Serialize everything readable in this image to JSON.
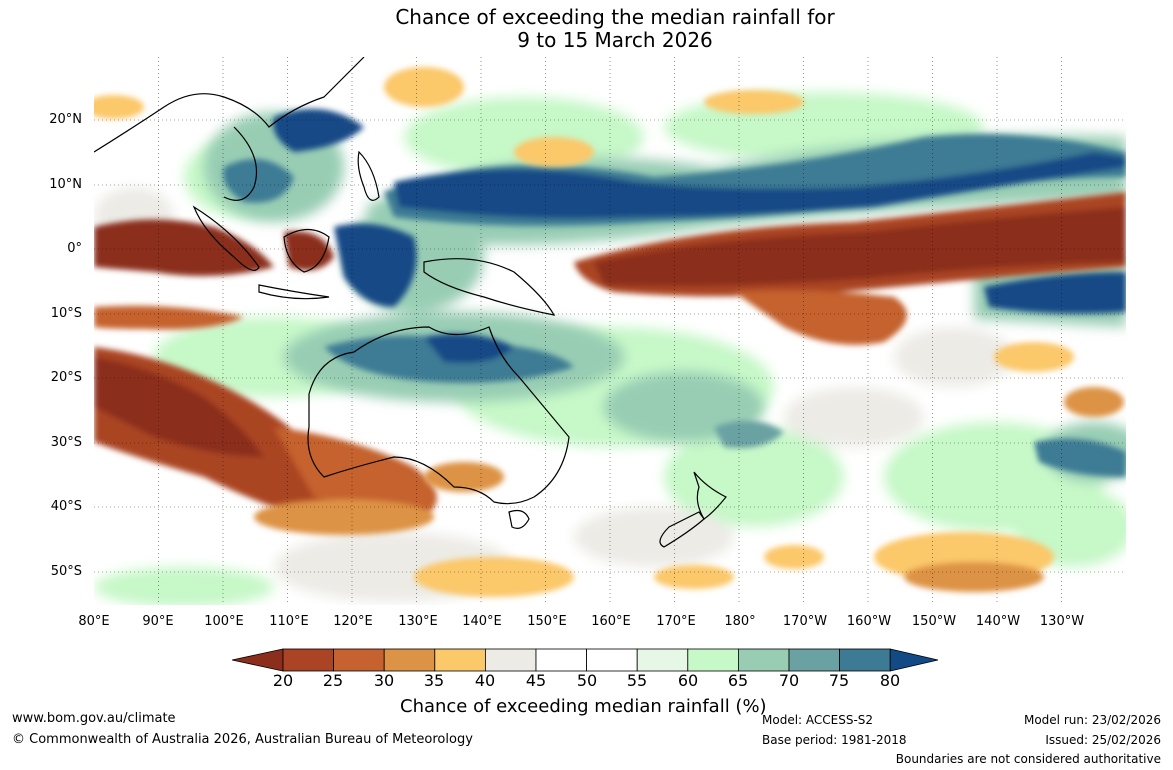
{
  "title": {
    "line1": "Chance of exceeding the median rainfall for",
    "line2": "9 to 15 March 2026"
  },
  "map": {
    "lat_labels": [
      "20°N",
      "10°N",
      "0°",
      "10°S",
      "20°S",
      "30°S",
      "40°S",
      "50°S"
    ],
    "lon_labels": [
      "80°E",
      "90°E",
      "100°E",
      "110°E",
      "120°E",
      "130°E",
      "140°E",
      "150°E",
      "160°E",
      "170°E",
      "180°",
      "170°W",
      "160°W",
      "150°W",
      "140°W",
      "130°W"
    ]
  },
  "legend": {
    "ticks": [
      "20",
      "25",
      "30",
      "35",
      "40",
      "45",
      "50",
      "55",
      "60",
      "65",
      "70",
      "75",
      "80"
    ],
    "colors": [
      "#8b2e1b",
      "#aa4424",
      "#c5622f",
      "#dd9345",
      "#fbc86a",
      "#ecebe6",
      "#ffffff",
      "#ffffff",
      "#e6f7e6",
      "#c6f8c8",
      "#98cdb4",
      "#6aa1a3",
      "#3d7b94",
      "#124a86"
    ],
    "title": "Chance of exceeding median rainfall (%)"
  },
  "footer": {
    "website": "www.bom.gov.au/climate",
    "copyright": "© Commonwealth of Australia 2026, Australian Bureau of Meteorology",
    "model": "Model: ACCESS-S2",
    "base_period": "Base period: 1981-2018",
    "model_run": "Model run: 23/02/2026",
    "issued": "Issued: 25/02/2026",
    "disclaimer": "Boundaries are not considered authoritative"
  }
}
